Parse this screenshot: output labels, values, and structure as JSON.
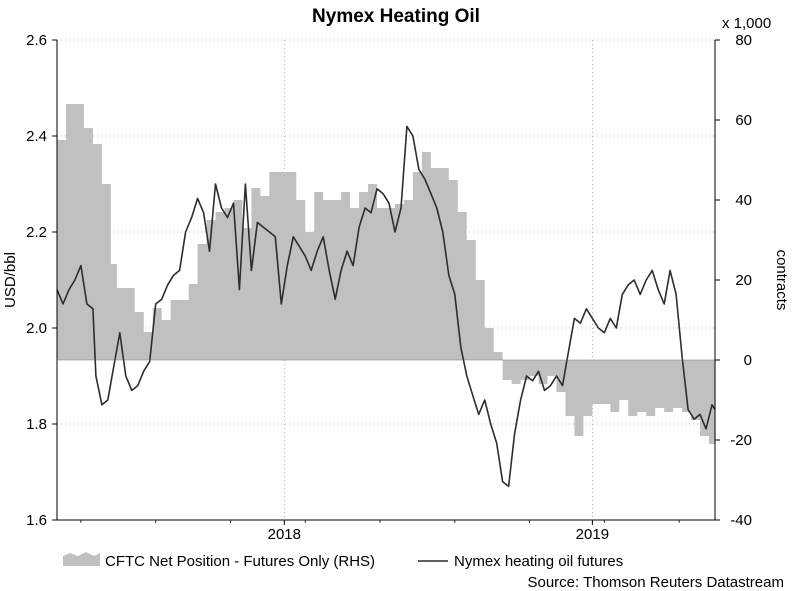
{
  "chart_data": {
    "type": "line",
    "title": "Nymex Heating Oil",
    "ylabel_left": "USD/bbl",
    "ylabel_right": "contracts",
    "right_unit": "x 1,000",
    "ylim_left": [
      1.6,
      2.6
    ],
    "ylim_right": [
      -40,
      80
    ],
    "yticks_left": [
      "2.6",
      "2.4",
      "2.2",
      "2.0",
      "1.8",
      "1.6"
    ],
    "yticks_right": [
      "80",
      "60",
      "40",
      "20",
      "0",
      "-20",
      "-40"
    ],
    "xlim": [
      2017.2,
      2019.4
    ],
    "xticks": [
      {
        "label": "2018",
        "value": 2017.96
      },
      {
        "label": "2019",
        "value": 2018.99
      }
    ],
    "grid": true,
    "legend_position": "bottom",
    "colors": {
      "area": "#c0c0c0",
      "line": "#2d2d2d",
      "grid": "#9a9a9a"
    },
    "source": "Source: Thomson Reuters Datastream",
    "series": [
      {
        "name": "CFTC Net Position - Futures Only (RHS)",
        "kind": "area",
        "axis": "right",
        "x": [
          2017.2,
          2017.23,
          2017.26,
          2017.29,
          2017.32,
          2017.35,
          2017.38,
          2017.4,
          2017.43,
          2017.46,
          2017.49,
          2017.52,
          2017.55,
          2017.58,
          2017.61,
          2017.64,
          2017.67,
          2017.7,
          2017.73,
          2017.76,
          2017.79,
          2017.82,
          2017.85,
          2017.88,
          2017.91,
          2017.94,
          2017.97,
          2018.0,
          2018.03,
          2018.06,
          2018.09,
          2018.12,
          2018.15,
          2018.18,
          2018.21,
          2018.24,
          2018.27,
          2018.3,
          2018.33,
          2018.36,
          2018.39,
          2018.42,
          2018.45,
          2018.48,
          2018.51,
          2018.54,
          2018.57,
          2018.6,
          2018.63,
          2018.66,
          2018.69,
          2018.72,
          2018.75,
          2018.78,
          2018.81,
          2018.84,
          2018.87,
          2018.9,
          2018.93,
          2018.96,
          2018.99,
          2019.02,
          2019.05,
          2019.08,
          2019.11,
          2019.14,
          2019.17,
          2019.2,
          2019.23,
          2019.26,
          2019.29,
          2019.32,
          2019.35,
          2019.38,
          2019.4
        ],
        "values": [
          55,
          64,
          64,
          58,
          54,
          44,
          24,
          18,
          18,
          12,
          7,
          13,
          10,
          15,
          15,
          19,
          29,
          35,
          37,
          38,
          40,
          33,
          43,
          41,
          47,
          47,
          47,
          40,
          32,
          42,
          40,
          40,
          42,
          38,
          42,
          44,
          38,
          38,
          39,
          40,
          47,
          52,
          48,
          48,
          45,
          37,
          30,
          20,
          8,
          2,
          -5,
          -6,
          -5,
          -4,
          -6,
          -4,
          -8,
          -14,
          -19,
          -14,
          -11,
          -11,
          -13,
          -10,
          -14,
          -13,
          -14,
          -12,
          -13,
          -12,
          -13,
          -15,
          -19,
          -21,
          -24
        ]
      },
      {
        "name": "Nymex heating oil futures",
        "kind": "line",
        "axis": "left",
        "x": [
          2017.2,
          2017.22,
          2017.24,
          2017.26,
          2017.28,
          2017.3,
          2017.32,
          2017.33,
          2017.35,
          2017.37,
          2017.39,
          2017.41,
          2017.43,
          2017.45,
          2017.47,
          2017.49,
          2017.51,
          2017.53,
          2017.55,
          2017.57,
          2017.59,
          2017.61,
          2017.63,
          2017.65,
          2017.67,
          2017.69,
          2017.71,
          2017.73,
          2017.75,
          2017.77,
          2017.79,
          2017.81,
          2017.83,
          2017.85,
          2017.87,
          2017.89,
          2017.91,
          2017.93,
          2017.95,
          2017.97,
          2017.99,
          2018.01,
          2018.03,
          2018.05,
          2018.07,
          2018.09,
          2018.11,
          2018.13,
          2018.15,
          2018.17,
          2018.19,
          2018.21,
          2018.23,
          2018.25,
          2018.27,
          2018.29,
          2018.31,
          2018.33,
          2018.35,
          2018.37,
          2018.39,
          2018.41,
          2018.43,
          2018.45,
          2018.47,
          2018.49,
          2018.51,
          2018.53,
          2018.55,
          2018.57,
          2018.59,
          2018.61,
          2018.63,
          2018.65,
          2018.67,
          2018.69,
          2018.71,
          2018.73,
          2018.75,
          2018.77,
          2018.79,
          2018.81,
          2018.83,
          2018.85,
          2018.87,
          2018.89,
          2018.91,
          2018.93,
          2018.95,
          2018.97,
          2018.99,
          2019.01,
          2019.03,
          2019.05,
          2019.07,
          2019.09,
          2019.11,
          2019.13,
          2019.15,
          2019.17,
          2019.19,
          2019.21,
          2019.23,
          2019.25,
          2019.27,
          2019.29,
          2019.31,
          2019.33,
          2019.35,
          2019.37,
          2019.39,
          2019.4
        ],
        "values": [
          2.08,
          2.05,
          2.08,
          2.1,
          2.13,
          2.05,
          2.04,
          1.9,
          1.84,
          1.85,
          1.92,
          1.99,
          1.9,
          1.87,
          1.88,
          1.91,
          1.93,
          2.05,
          2.06,
          2.09,
          2.11,
          2.12,
          2.2,
          2.23,
          2.27,
          2.24,
          2.16,
          2.3,
          2.25,
          2.23,
          2.26,
          2.08,
          2.3,
          2.12,
          2.22,
          2.21,
          2.2,
          2.19,
          2.05,
          2.13,
          2.19,
          2.17,
          2.15,
          2.12,
          2.16,
          2.19,
          2.12,
          2.06,
          2.12,
          2.16,
          2.13,
          2.21,
          2.25,
          2.24,
          2.29,
          2.28,
          2.26,
          2.2,
          2.25,
          2.42,
          2.4,
          2.33,
          2.31,
          2.28,
          2.25,
          2.2,
          2.11,
          2.07,
          1.96,
          1.9,
          1.86,
          1.82,
          1.85,
          1.8,
          1.76,
          1.68,
          1.67,
          1.78,
          1.85,
          1.9,
          1.89,
          1.91,
          1.87,
          1.88,
          1.9,
          1.88,
          1.95,
          2.02,
          2.01,
          2.04,
          2.02,
          2.0,
          1.99,
          2.02,
          2.0,
          2.07,
          2.09,
          2.1,
          2.07,
          2.1,
          2.12,
          2.08,
          2.05,
          2.12,
          2.07,
          1.94,
          1.83,
          1.81,
          1.82,
          1.79,
          1.84,
          1.83
        ]
      }
    ]
  }
}
